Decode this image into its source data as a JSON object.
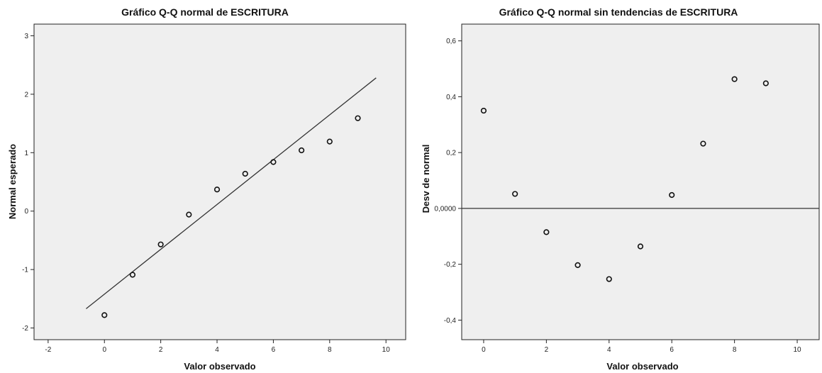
{
  "chart_data": [
    {
      "type": "scatter",
      "title": "Gráfico Q-Q normal de ESCRITURA",
      "xlabel": "Valor observado",
      "ylabel": "Normal esperado",
      "xlim": [
        -2.5,
        10.7
      ],
      "ylim": [
        -2.2,
        3.2
      ],
      "xticks": [
        -2,
        0,
        2,
        4,
        6,
        8,
        10
      ],
      "xtick_labels": [
        "-2",
        "0",
        "2",
        "4",
        "6",
        "8",
        "10"
      ],
      "yticks": [
        -2,
        -1,
        0,
        1,
        2,
        3
      ],
      "ytick_labels": [
        "-2",
        "-1",
        "0",
        "1",
        "2",
        "3"
      ],
      "grid": false,
      "series": [
        {
          "marker": "open-circle",
          "x": [
            0,
            1,
            2,
            3,
            4,
            5,
            6,
            7,
            8,
            9
          ],
          "y": [
            -1.78,
            -1.09,
            -0.57,
            -0.06,
            0.37,
            0.64,
            0.84,
            1.04,
            1.19,
            1.59
          ]
        }
      ],
      "reference_line": {
        "x": [
          -0.65,
          9.65
        ],
        "y": [
          -1.67,
          2.28
        ]
      }
    },
    {
      "type": "scatter",
      "title": "Gráfico Q-Q normal sin tendencias de ESCRITURA",
      "xlabel": "Valor observado",
      "ylabel": "Desv de normal",
      "xlim": [
        -0.7,
        10.7
      ],
      "ylim": [
        -0.47,
        0.66
      ],
      "xticks": [
        0,
        2,
        4,
        6,
        8,
        10
      ],
      "xtick_labels": [
        "0",
        "2",
        "4",
        "6",
        "8",
        "10"
      ],
      "yticks": [
        -0.4,
        -0.2,
        0,
        0.2,
        0.4,
        0.6
      ],
      "ytick_labels": [
        "-0,4",
        "-0,2",
        "0,0000",
        "0,2",
        "0,4",
        "0,6"
      ],
      "grid": false,
      "series": [
        {
          "marker": "open-circle",
          "x": [
            0,
            1,
            2,
            3,
            4,
            5,
            6,
            7,
            8,
            9
          ],
          "y": [
            0.35,
            0.052,
            -0.085,
            -0.203,
            -0.253,
            -0.136,
            0.048,
            0.232,
            0.463,
            0.448
          ]
        }
      ],
      "reference_line": {
        "y": 0
      }
    }
  ]
}
